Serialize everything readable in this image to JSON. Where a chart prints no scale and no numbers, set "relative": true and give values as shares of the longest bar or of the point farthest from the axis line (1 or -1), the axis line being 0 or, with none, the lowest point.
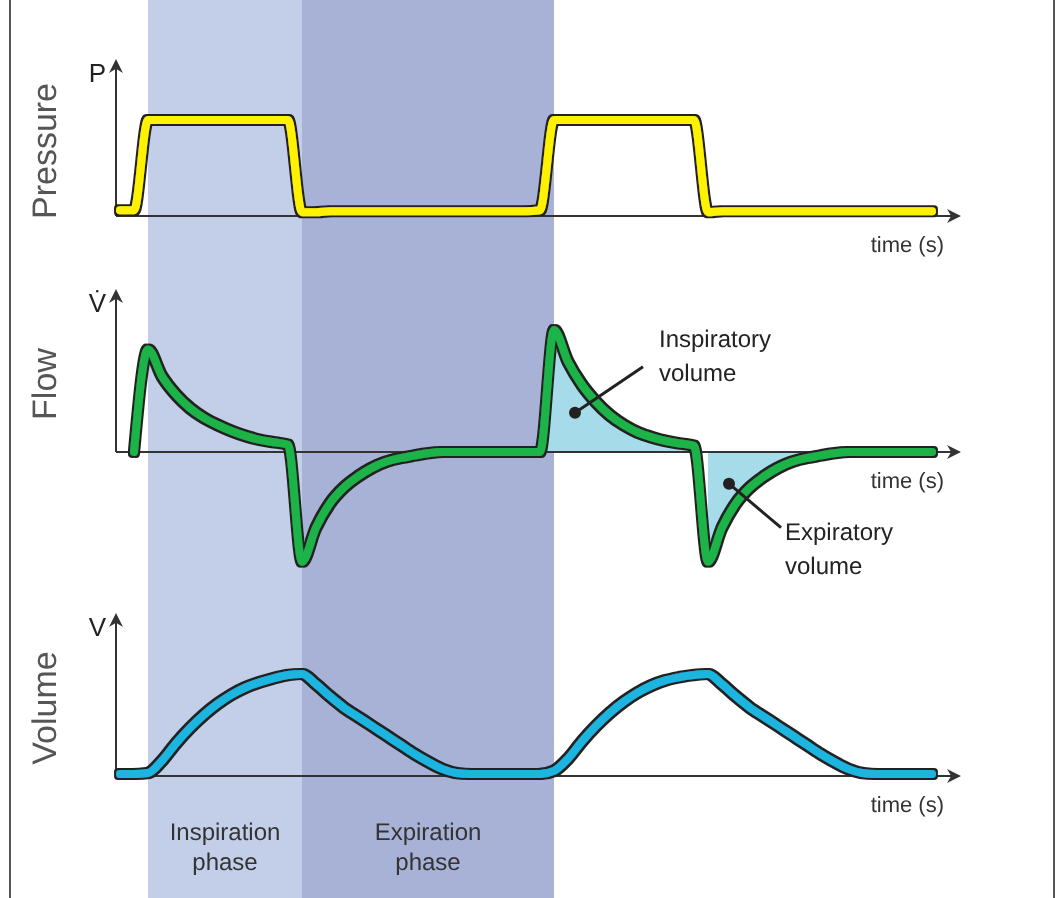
{
  "chart_data": [
    {
      "type": "line",
      "ylabel": "Pressure",
      "xlabel": "time (s)",
      "annotations": [
        "P"
      ],
      "relative": true,
      "categories": [
        null,
        null,
        null,
        null,
        null,
        null,
        null,
        null,
        null,
        null,
        null,
        null,
        null,
        null,
        null,
        null,
        null,
        null,
        null,
        null,
        null,
        null,
        null,
        null,
        null,
        null,
        null,
        null,
        null,
        null,
        null,
        null,
        null,
        null,
        null,
        null,
        null,
        null,
        null,
        null,
        null,
        null,
        null,
        null,
        null,
        null,
        null,
        null,
        null,
        null,
        null,
        null,
        null,
        null,
        null,
        null,
        null,
        null,
        null
      ],
      "series": [
        {
          "color": "#fff200",
          "values": [
            0.06,
            0.06,
            1,
            1,
            1,
            1,
            1,
            1,
            1,
            1,
            1,
            1,
            1,
            0.04,
            0.04,
            0.05,
            0.05,
            0.05,
            0.05,
            0.05,
            0.05,
            0.05,
            0.05,
            0.05,
            0.05,
            0.05,
            0.05,
            0.05,
            0.05,
            0.05,
            0.06,
            1,
            1,
            1,
            1,
            1,
            1,
            1,
            1,
            1,
            1,
            1,
            0.04,
            0.05,
            0.05,
            0.05,
            0.05,
            0.05,
            0.05,
            0.05,
            0.05,
            0.05,
            0.05,
            0.05,
            0.05,
            0.05,
            0.05,
            0.05,
            0.05
          ]
        }
      ]
    },
    {
      "type": "line",
      "ylabel": "Flow",
      "xlabel": "time (s)",
      "annotations": [
        "V̇",
        "Inspiratory volume",
        "Expiratory volume"
      ],
      "relative": true,
      "categories": [
        null,
        null,
        null,
        null,
        null,
        null,
        null,
        null,
        null,
        null,
        null,
        null,
        null,
        null,
        null,
        null,
        null,
        null,
        null,
        null,
        null,
        null,
        null,
        null,
        null,
        null,
        null,
        null,
        null,
        null,
        null,
        null,
        null,
        null,
        null,
        null,
        null,
        null,
        null,
        null,
        null,
        null,
        null,
        null,
        null,
        null,
        null,
        null,
        null,
        null,
        null,
        null,
        null,
        null,
        null,
        null,
        null,
        null,
        null
      ],
      "series": [
        {
          "type": "area",
          "color": "#a6dcea",
          "values": [
            null,
            null,
            null,
            null,
            null,
            null,
            null,
            null,
            null,
            null,
            null,
            null,
            null,
            null,
            null,
            null,
            null,
            null,
            null,
            null,
            null,
            null,
            null,
            null,
            null,
            null,
            null,
            null,
            null,
            null,
            0,
            1,
            0.74,
            0.55,
            0.41,
            0.3,
            0.22,
            0.16,
            0.12,
            0.09,
            0.07,
            0.05,
            null,
            null,
            null,
            null,
            null,
            null,
            null,
            null,
            null,
            null,
            null,
            null,
            null,
            null,
            null,
            null,
            null
          ]
        },
        {
          "type": "area",
          "color": "#a6dcea",
          "values": [
            null,
            null,
            null,
            null,
            null,
            null,
            null,
            null,
            null,
            null,
            null,
            null,
            null,
            null,
            null,
            null,
            null,
            null,
            null,
            null,
            null,
            null,
            null,
            null,
            null,
            null,
            null,
            null,
            null,
            null,
            null,
            null,
            null,
            null,
            null,
            null,
            null,
            null,
            null,
            null,
            null,
            null,
            -0.9,
            -0.62,
            -0.42,
            -0.29,
            -0.2,
            -0.13,
            -0.08,
            -0.05,
            -0.03,
            -0.01,
            0,
            null,
            null,
            null,
            null,
            null,
            null
          ]
        },
        {
          "color": "#1db34a",
          "values": [
            null,
            0,
            0.84,
            0.62,
            0.47,
            0.36,
            0.28,
            0.22,
            0.17,
            0.13,
            0.1,
            0.08,
            0.06,
            -0.9,
            -0.62,
            -0.42,
            -0.29,
            -0.2,
            -0.13,
            -0.08,
            -0.05,
            -0.03,
            -0.01,
            0,
            0,
            0,
            0,
            0,
            0,
            0,
            0,
            1,
            0.74,
            0.55,
            0.41,
            0.3,
            0.22,
            0.16,
            0.12,
            0.09,
            0.07,
            0.05,
            -0.9,
            -0.62,
            -0.42,
            -0.29,
            -0.2,
            -0.13,
            -0.08,
            -0.05,
            -0.03,
            -0.01,
            0,
            0,
            0,
            0,
            0,
            0,
            0
          ]
        }
      ]
    },
    {
      "type": "line",
      "ylabel": "Volume",
      "xlabel": "time (s)",
      "annotations": [
        "V",
        "Inspiration phase",
        "Expiration phase"
      ],
      "relative": true,
      "categories": [
        null,
        null,
        null,
        null,
        null,
        null,
        null,
        null,
        null,
        null,
        null,
        null,
        null,
        null,
        null,
        null,
        null,
        null,
        null,
        null,
        null,
        null,
        null,
        null,
        null,
        null,
        null,
        null,
        null,
        null,
        null,
        null,
        null,
        null,
        null,
        null,
        null,
        null,
        null,
        null,
        null,
        null,
        null,
        null,
        null,
        null,
        null,
        null,
        null,
        null,
        null,
        null,
        null,
        null,
        null,
        null,
        null,
        null,
        null
      ],
      "series": [
        {
          "color": "#1fb5e0",
          "values": [
            0.02,
            0.02,
            0.03,
            0.15,
            0.32,
            0.47,
            0.6,
            0.71,
            0.8,
            0.87,
            0.92,
            0.96,
            0.99,
            1,
            0.9,
            0.78,
            0.67,
            0.58,
            0.49,
            0.4,
            0.31,
            0.22,
            0.14,
            0.07,
            0.03,
            0.02,
            0.02,
            0.02,
            0.02,
            0.02,
            0.02,
            0.05,
            0.17,
            0.34,
            0.49,
            0.62,
            0.73,
            0.82,
            0.89,
            0.94,
            0.97,
            0.99,
            1,
            0.9,
            0.78,
            0.67,
            0.58,
            0.49,
            0.4,
            0.31,
            0.22,
            0.14,
            0.07,
            0.03,
            0.02,
            0.02,
            0.02,
            0.02,
            0.02
          ]
        }
      ]
    }
  ]
}
